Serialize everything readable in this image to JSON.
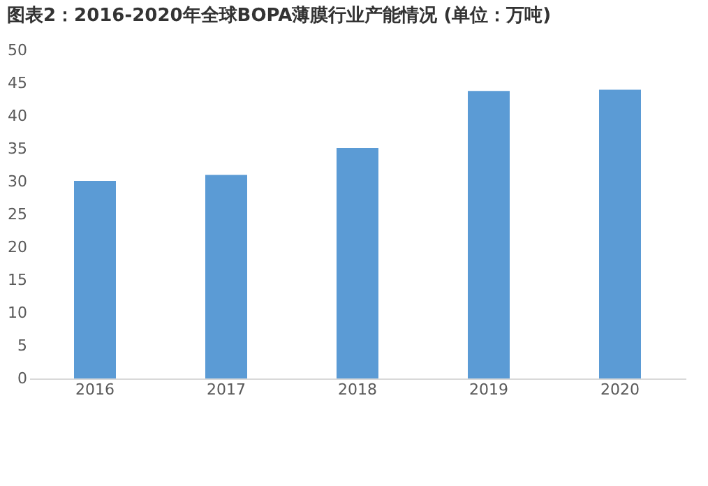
{
  "chart_data": {
    "type": "bar",
    "title": "图表2：2016-2020年全球BOPA薄膜行业产能情况 (单位：万吨)",
    "categories": [
      "2016",
      "2017",
      "2018",
      "2019",
      "2020"
    ],
    "values": [
      30.1,
      31.0,
      35.1,
      43.8,
      44.0
    ],
    "color": "#5b9bd5",
    "ylim": [
      0,
      50
    ],
    "yticks": [
      0,
      5,
      10,
      15,
      20,
      25,
      30,
      35,
      40,
      45,
      50
    ],
    "grid": false
  }
}
